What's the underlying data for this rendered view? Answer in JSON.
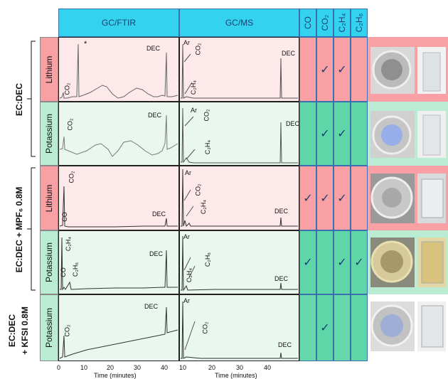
{
  "headers": {
    "gcftir": "GC/FTIR",
    "gcms": "GC/MS",
    "gases": [
      "CO",
      "CO₂",
      "C₂H₄",
      "C₂H₆"
    ]
  },
  "groups": [
    "EC:DEC",
    "EC:DEC + MPF₆ 0.8M",
    "EC:DEC\n+ KFSI 0.8M"
  ],
  "group_line1": "EC:DEC",
  "group_line2": "+ KFSI 0.8M",
  "rows": [
    {
      "label": "Lithium",
      "color": "#f8a0a4",
      "bg": "#fde9ea",
      "marks": [
        "",
        "✓",
        "✓",
        ""
      ]
    },
    {
      "label": "Potassium",
      "color": "#5fd6a8",
      "bg": "#e9f7ef",
      "marks": [
        "",
        "✓",
        "✓",
        ""
      ]
    },
    {
      "label": "Lithium",
      "color": "#f8a0a4",
      "bg": "#fde9ea",
      "marks": [
        "✓",
        "✓",
        "✓",
        ""
      ]
    },
    {
      "label": "Potassium",
      "color": "#5fd6a8",
      "bg": "#e9f7ef",
      "marks": [
        "✓",
        "",
        "✓",
        "✓"
      ]
    },
    {
      "label": "Potassium",
      "color": "#5fd6a8",
      "bg": "#e9f7ef",
      "marks": [
        "",
        "✓",
        "",
        ""
      ]
    }
  ],
  "ftir_annotations": [
    [
      "CO₂",
      "*",
      "DEC"
    ],
    [
      "CO₂",
      "DEC"
    ],
    [
      "CO₂",
      "CO",
      "DEC"
    ],
    [
      "C₂H₄",
      "CO",
      "C₂H₆",
      "DEC"
    ],
    [
      "CO₂",
      "DEC"
    ]
  ],
  "ms_annotations": [
    [
      "Ar",
      "CO₂",
      "C₂H₄",
      "DEC"
    ],
    [
      "Ar",
      "CO₂",
      "C₂H₄",
      "DEC"
    ],
    [
      "Ar",
      "CO₂",
      "C₂H₄",
      "DEC"
    ],
    [
      "Ar",
      "C₂H₄",
      "C₂H₆",
      "DEC"
    ],
    [
      "Ar",
      "CO₂",
      "DEC"
    ]
  ],
  "axes": {
    "ftir_ticks": [
      "0",
      "10",
      "20",
      "30",
      "40"
    ],
    "ms_ticks": [
      "10",
      "20",
      "30",
      "40"
    ],
    "xlabel": "Time (minutes)"
  }
}
